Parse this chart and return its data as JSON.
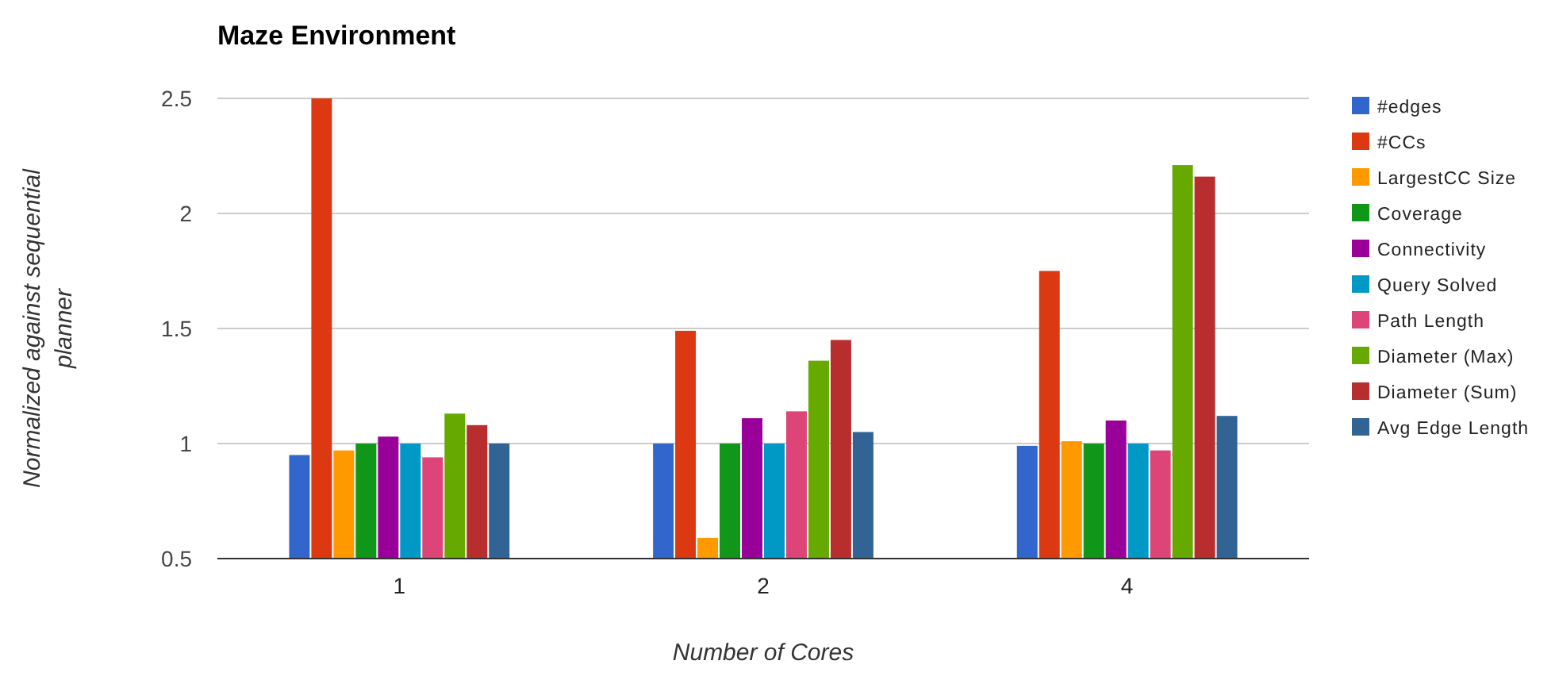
{
  "chart_data": {
    "type": "bar",
    "title": "Maze Environment",
    "xlabel": "Number of Cores",
    "ylabel": "Normalized against sequential planner",
    "categories": [
      "1",
      "2",
      "4"
    ],
    "series": [
      {
        "name": "#edges",
        "color": "#3366cc",
        "values": [
          0.95,
          1.0,
          0.99
        ]
      },
      {
        "name": "#CCs",
        "color": "#dc3912",
        "values": [
          2.5,
          1.49,
          1.75
        ]
      },
      {
        "name": "LargestCC Size",
        "color": "#ff9900",
        "values": [
          0.97,
          0.59,
          1.01
        ]
      },
      {
        "name": "Coverage",
        "color": "#109618",
        "values": [
          1.0,
          1.0,
          1.0
        ]
      },
      {
        "name": "Connectivity",
        "color": "#990099",
        "values": [
          1.03,
          1.11,
          1.1
        ]
      },
      {
        "name": "Query Solved",
        "color": "#0099c6",
        "values": [
          1.0,
          1.0,
          1.0
        ]
      },
      {
        "name": "Path Length",
        "color": "#dd4477",
        "values": [
          0.94,
          1.14,
          0.97
        ]
      },
      {
        "name": "Diameter (Max)",
        "color": "#66aa00",
        "values": [
          1.13,
          1.36,
          2.21
        ]
      },
      {
        "name": "Diameter (Sum)",
        "color": "#b82e2e",
        "values": [
          1.08,
          1.45,
          2.16
        ]
      },
      {
        "name": "Avg Edge Length",
        "color": "#316395",
        "values": [
          1.0,
          1.05,
          1.12
        ]
      }
    ],
    "ylim": [
      0.5,
      2.5
    ],
    "yticks": [
      0.5,
      1,
      1.5,
      2,
      2.5
    ],
    "grid": "y",
    "legend": "right"
  }
}
